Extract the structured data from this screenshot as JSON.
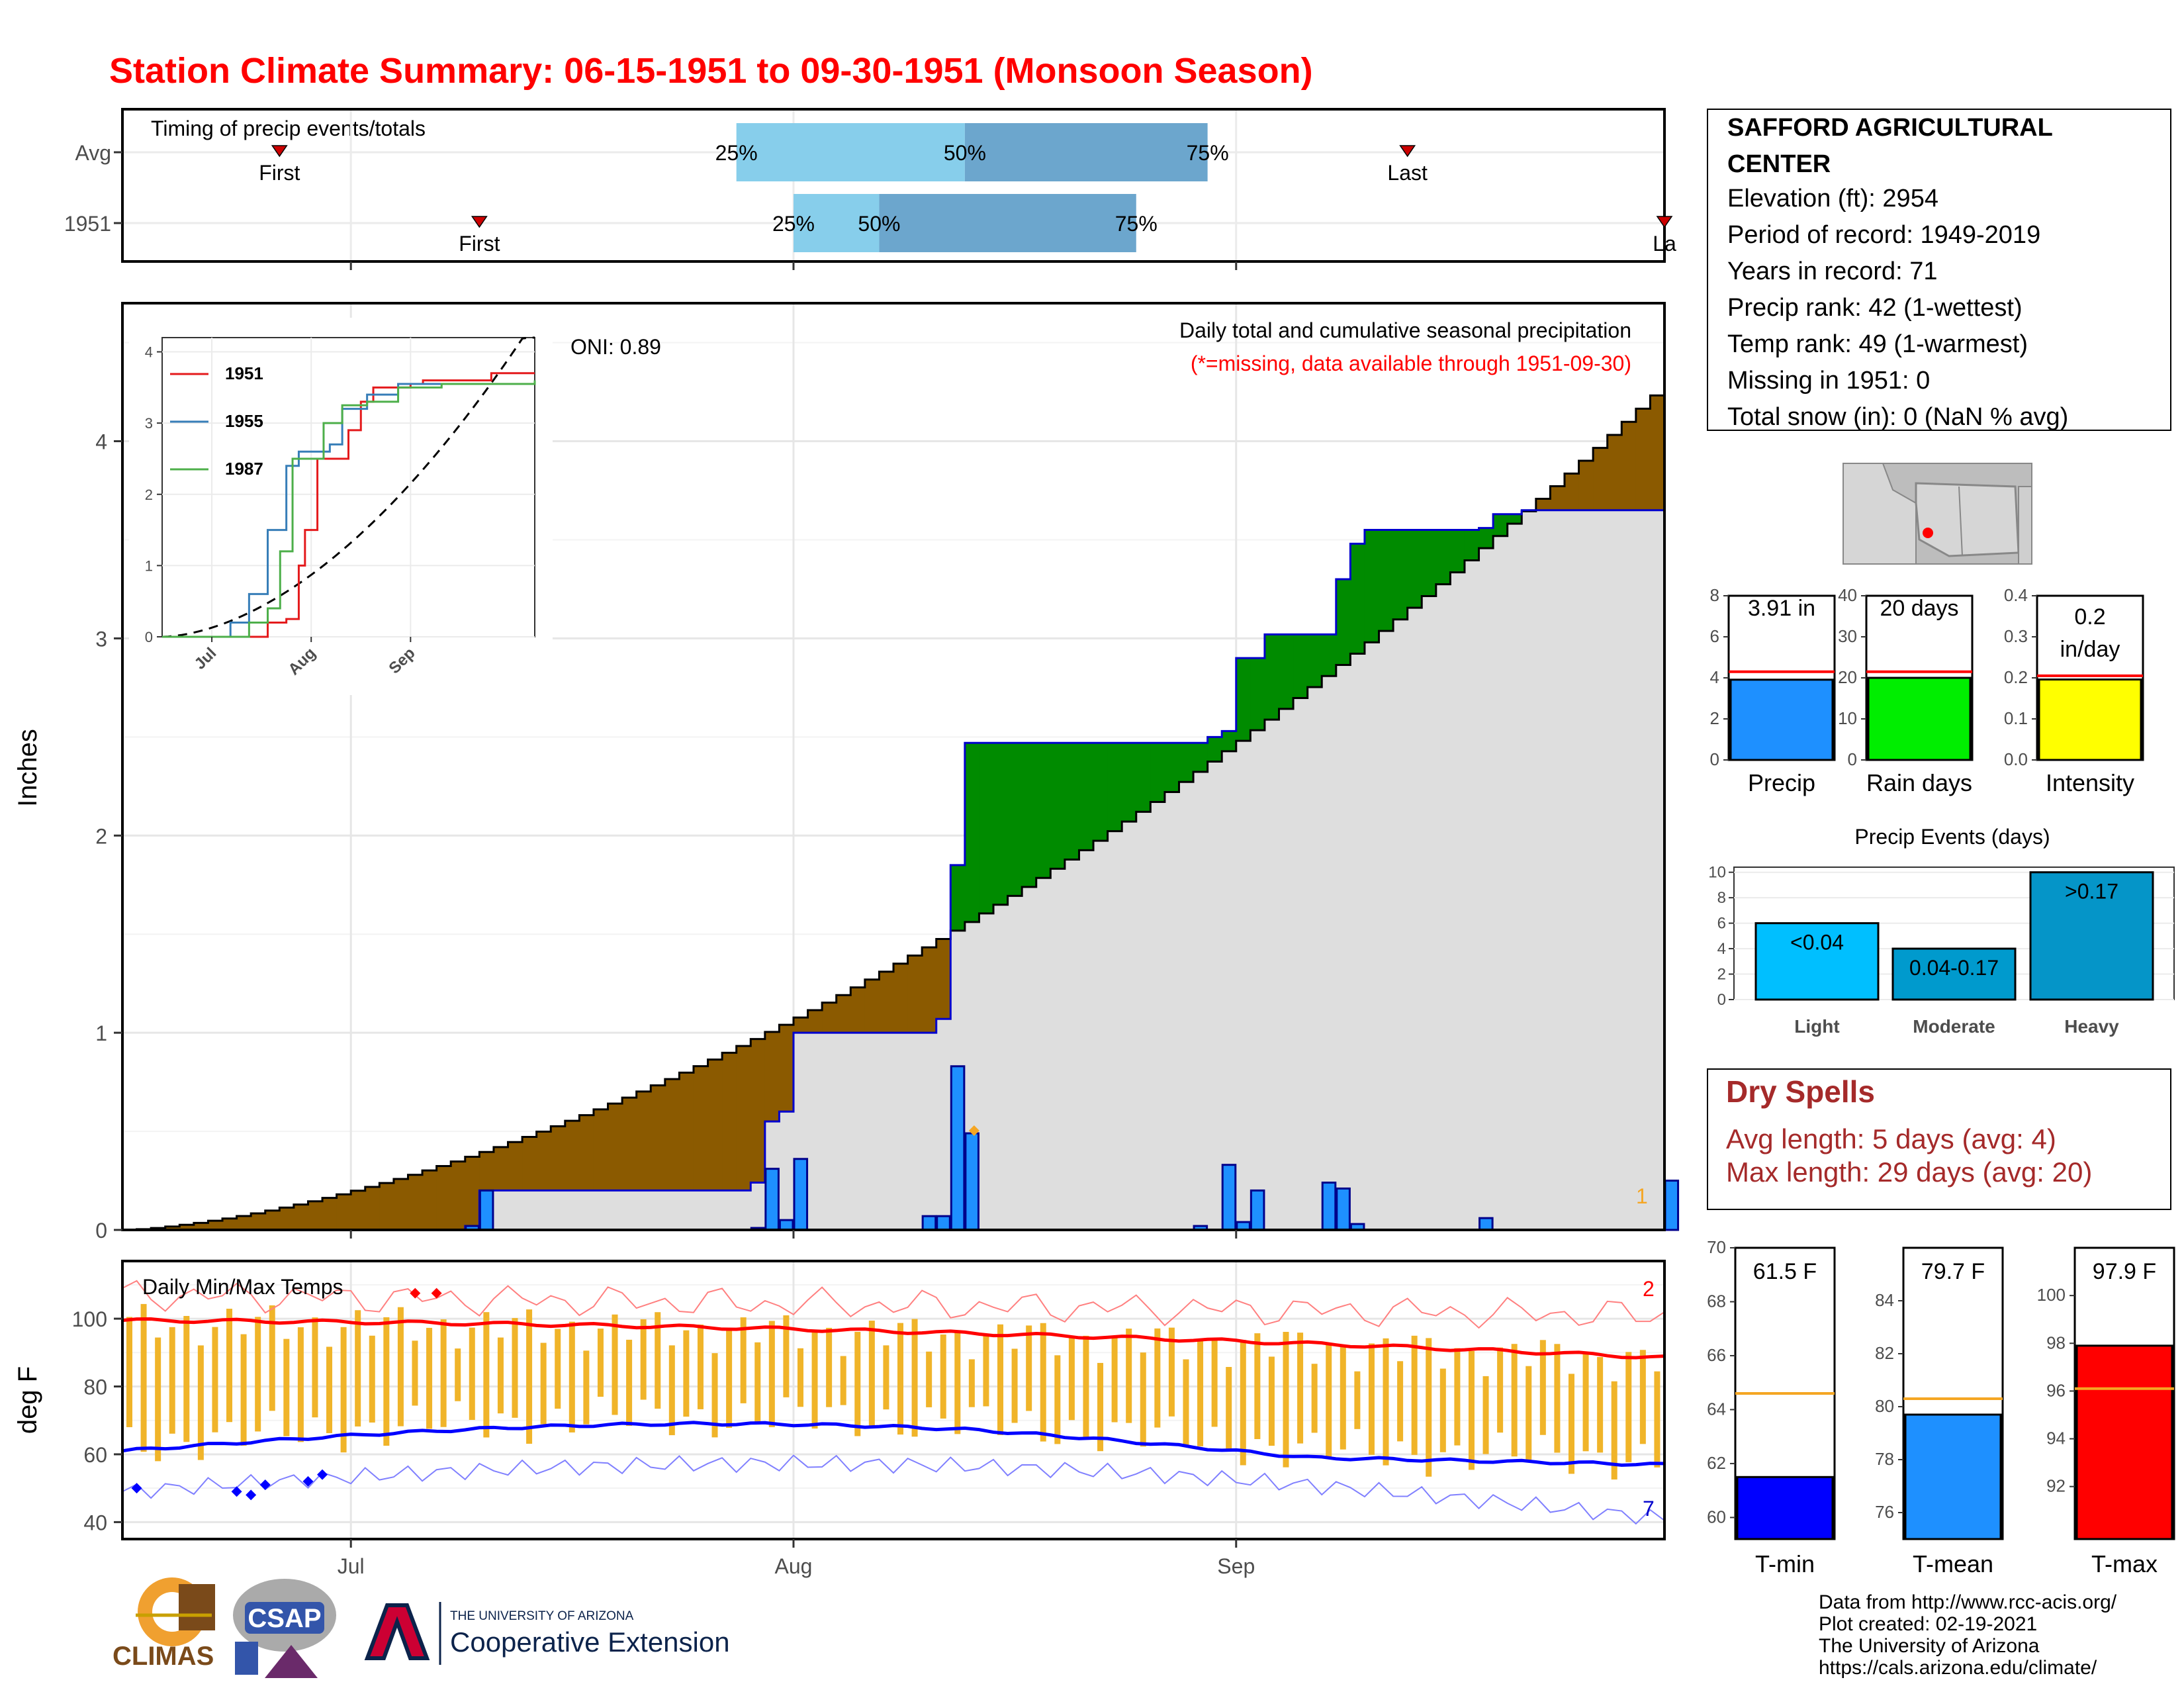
{
  "title": "Station Climate Summary: 06-15-1951 to 09-30-1951 (Monsoon Season)",
  "timing": {
    "label": "Timing of precip events/totals",
    "rows": [
      {
        "label": "Avg",
        "first_day": 11,
        "p25_day": 43,
        "p50_day": 59,
        "p75_day": 76,
        "last_day": 90,
        "first_label": "First",
        "last_label": "Last"
      },
      {
        "label": "1951",
        "first_day": 25,
        "p25_day": 47,
        "p50_day": 53,
        "p75_day": 71,
        "last_day": 108,
        "first_label": "First",
        "last_label": "La"
      }
    ],
    "pct_labels": [
      "25%",
      "50%",
      "75%"
    ]
  },
  "station": {
    "name_line1": "SAFFORD AGRICULTURAL",
    "name_line2": "CENTER",
    "lines": [
      "Elevation (ft): 2954",
      "Period of record: 1949-2019",
      "Years in record: 71",
      "Precip rank: 42 (1-wettest)",
      "Temp rank: 49 (1-warmest)",
      "Missing in 1951: 0",
      "Total snow (in): 0 (NaN % avg)"
    ]
  },
  "main": {
    "oni": "ONI: 0.89",
    "header": "Daily total and cumulative seasonal precipitation",
    "subheader": "(*=missing, data available through 1951-09-30)",
    "ylabel": "Inches",
    "y_ticks": [
      "0",
      "1",
      "2",
      "3",
      "4"
    ],
    "corner_note": "1"
  },
  "inset": {
    "legend": [
      "1951",
      "1955",
      "1987"
    ],
    "y_ticks": [
      "0",
      "1",
      "2",
      "3",
      "4"
    ],
    "x_ticks": [
      "Jul",
      "Aug",
      "Sep"
    ]
  },
  "temps": {
    "label": "Daily Min/Max Temps",
    "ylabel": "deg F",
    "y_ticks": [
      "40",
      "60",
      "80",
      "100"
    ],
    "x_ticks": [
      "Jul",
      "Aug",
      "Sep"
    ],
    "count_hi": "2",
    "count_lo": "7"
  },
  "small_bars": [
    {
      "key": "precip",
      "label": "Precip",
      "value_text": "3.91 in",
      "value": 3.91,
      "avg": 4.3,
      "ymax": 8,
      "ticks": [
        "0",
        "2",
        "4",
        "6",
        "8"
      ],
      "tickvals": [
        0,
        2,
        4,
        6,
        8
      ],
      "color": "#1e90ff"
    },
    {
      "key": "raindays",
      "label": "Rain days",
      "value_text": "20 days",
      "value": 20,
      "avg": 21.5,
      "ymax": 40,
      "ticks": [
        "0",
        "10",
        "20",
        "30",
        "40"
      ],
      "tickvals": [
        0,
        10,
        20,
        30,
        40
      ],
      "color": "#00ee00"
    },
    {
      "key": "intensity",
      "label": "Intensity",
      "value_text": "0.2 in/day",
      "value_line1": "0.2",
      "value_line2": "in/day",
      "value": 0.196,
      "avg": 0.205,
      "ymax": 0.4,
      "ticks": [
        "0.0",
        "0.1",
        "0.2",
        "0.3",
        "0.4"
      ],
      "tickvals": [
        0,
        0.1,
        0.2,
        0.3,
        0.4
      ],
      "color": "#ffff00"
    }
  ],
  "events": {
    "title": "Precip Events (days)",
    "bars": [
      {
        "label": "Light",
        "value": 6,
        "text": "<0.04",
        "color": "#00bfff"
      },
      {
        "label": "Moderate",
        "value": 4,
        "text": "0.04-0.17",
        "color": "#009acd"
      },
      {
        "label": "Heavy",
        "value": 10,
        "text": ">0.17",
        "color": "#0595c8"
      }
    ],
    "ticks": [
      "0",
      "2",
      "4",
      "6",
      "8",
      "10"
    ]
  },
  "dry_spells": {
    "title": "Dry Spells",
    "avg": "Avg length: 5 days (avg: 4)",
    "max": "Max length: 29 days (avg: 20)"
  },
  "temp_bars": [
    {
      "key": "tmin",
      "label": "T-min",
      "value_text": "61.5 F",
      "value": 61.5,
      "avg": 64.6,
      "ymin": 59.2,
      "ymax": 70,
      "ticks": [
        "60",
        "62",
        "64",
        "66",
        "68",
        "70"
      ],
      "tickvals": [
        60,
        62,
        64,
        66,
        68,
        70
      ],
      "color": "#0000ff"
    },
    {
      "key": "tmean",
      "label": "T-mean",
      "value_text": "79.7 F",
      "value": 79.7,
      "avg": 80.3,
      "ymin": 75,
      "ymax": 86,
      "ticks": [
        "76",
        "78",
        "80",
        "82",
        "84"
      ],
      "tickvals": [
        76,
        78,
        80,
        82,
        84
      ],
      "color": "#1e90ff"
    },
    {
      "key": "tmax",
      "label": "T-max",
      "value_text": "97.9 F",
      "value": 97.9,
      "avg": 96.1,
      "ymin": 89.8,
      "ymax": 102,
      "ticks": [
        "92",
        "94",
        "96",
        "98",
        "100"
      ],
      "tickvals": [
        92,
        94,
        96,
        98,
        100
      ],
      "color": "#ff0000"
    }
  ],
  "credits": [
    "Data from http://www.rcc-acis.org/",
    "Plot created: 02-19-2021",
    "The University of Arizona",
    "https://cals.arizona.edu/climate/"
  ],
  "logos": {
    "climas": "CLIMAS",
    "csap": "CSAP",
    "ua_small": "THE UNIVERSITY OF ARIZONA",
    "ua_big": "Cooperative Extension"
  },
  "chart_data": {
    "type": "area",
    "x_range": [
      "1951-06-15",
      "1951-09-30"
    ],
    "y_range": [
      0,
      4.7
    ],
    "series_cumulative_1951_points": [
      [
        0,
        0
      ],
      [
        24,
        0.02
      ],
      [
        25,
        0.2
      ],
      [
        44,
        0.24
      ],
      [
        45,
        0.55
      ],
      [
        46,
        0.6
      ],
      [
        47,
        1.0
      ],
      [
        57,
        1.07
      ],
      [
        58,
        1.85
      ],
      [
        59,
        2.47
      ],
      [
        75,
        2.47
      ],
      [
        76,
        2.5
      ],
      [
        77,
        2.53
      ],
      [
        78,
        2.9
      ],
      [
        80,
        3.02
      ],
      [
        84,
        3.02
      ],
      [
        85,
        3.3
      ],
      [
        86,
        3.48
      ],
      [
        87,
        3.55
      ],
      [
        95,
        3.56
      ],
      [
        96,
        3.63
      ],
      [
        98,
        3.65
      ],
      [
        107,
        3.65
      ],
      [
        108,
        3.91
      ]
    ],
    "series_avg_cumulative_end": 4.3,
    "daily_precip": [
      {
        "day": 24,
        "value": 0.02
      },
      {
        "day": 25,
        "value": 0.2
      },
      {
        "day": 44,
        "value": 0.01
      },
      {
        "day": 45,
        "value": 0.31
      },
      {
        "day": 46,
        "value": 0.05
      },
      {
        "day": 47,
        "value": 0.36
      },
      {
        "day": 56,
        "value": 0.07
      },
      {
        "day": 57,
        "value": 0.07
      },
      {
        "day": 58,
        "value": 0.83
      },
      {
        "day": 59,
        "value": 0.49
      },
      {
        "day": 75,
        "value": 0.02
      },
      {
        "day": 77,
        "value": 0.33
      },
      {
        "day": 78,
        "value": 0.04
      },
      {
        "day": 79,
        "value": 0.2
      },
      {
        "day": 84,
        "value": 0.24
      },
      {
        "day": 85,
        "value": 0.21
      },
      {
        "day": 86,
        "value": 0.03
      },
      {
        "day": 95,
        "value": 0.06
      },
      {
        "day": 108,
        "value": 0.25
      }
    ],
    "inset_series": [
      {
        "name": "1951",
        "color": "#e41a1c",
        "points": [
          [
            0,
            0
          ],
          [
            15,
            0
          ],
          [
            17,
            0.2
          ],
          [
            20,
            0.25
          ],
          [
            22,
            1.0
          ],
          [
            23,
            1.5
          ],
          [
            25,
            2.5
          ],
          [
            28,
            2.5
          ],
          [
            30,
            2.9
          ],
          [
            32,
            3.3
          ],
          [
            34,
            3.5
          ],
          [
            40,
            3.55
          ],
          [
            42,
            3.6
          ],
          [
            52,
            3.6
          ],
          [
            53,
            3.7
          ],
          [
            60,
            3.7
          ]
        ]
      },
      {
        "name": "1955",
        "color": "#377eb8",
        "points": [
          [
            0,
            0
          ],
          [
            10,
            0
          ],
          [
            11,
            0.2
          ],
          [
            14,
            0.6
          ],
          [
            17,
            1.5
          ],
          [
            20,
            2.4
          ],
          [
            22,
            2.6
          ],
          [
            27,
            2.7
          ],
          [
            29,
            3.2
          ],
          [
            33,
            3.4
          ],
          [
            38,
            3.55
          ],
          [
            42,
            3.55
          ],
          [
            60,
            3.6
          ]
        ]
      },
      {
        "name": "1987",
        "color": "#4daf4a",
        "points": [
          [
            0,
            0
          ],
          [
            12,
            0
          ],
          [
            14,
            0.2
          ],
          [
            17,
            0.4
          ],
          [
            19,
            1.2
          ],
          [
            21,
            2.5
          ],
          [
            24,
            2.5
          ],
          [
            26,
            3.0
          ],
          [
            29,
            3.25
          ],
          [
            33,
            3.3
          ],
          [
            38,
            3.5
          ],
          [
            45,
            3.55
          ],
          [
            60,
            3.6
          ]
        ]
      }
    ]
  }
}
